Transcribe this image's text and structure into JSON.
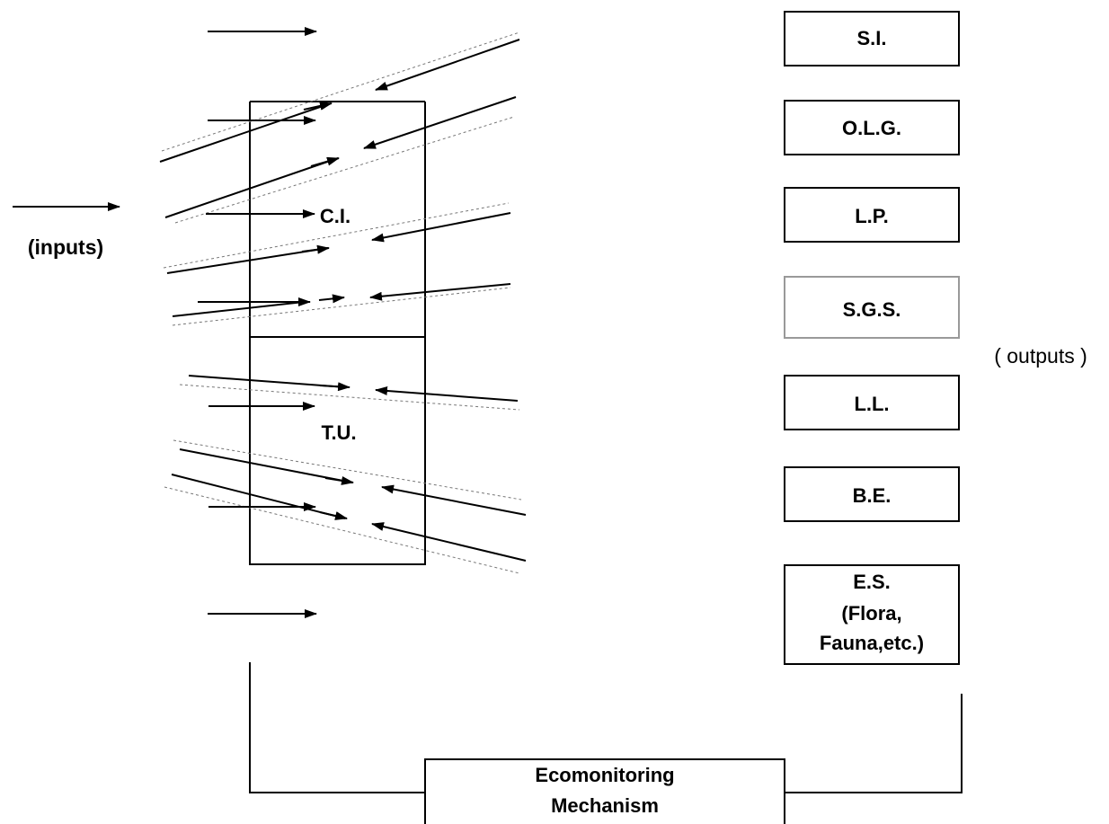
{
  "inputs_label": "(inputs)",
  "outputs_label": "( outputs )",
  "center_labels": {
    "ci": "C.I.",
    "tu": "T.U."
  },
  "outputs": [
    {
      "id": "si",
      "label": "S.I."
    },
    {
      "id": "olg",
      "label": "O.L.G."
    },
    {
      "id": "lp",
      "label": "L.P."
    },
    {
      "id": "sgs",
      "label": "S.G.S."
    },
    {
      "id": "ll",
      "label": "L.L."
    },
    {
      "id": "be",
      "label": "B.E."
    },
    {
      "id": "es",
      "lines": [
        "E.S.",
        "(Flora,",
        "Fauna,etc.)"
      ]
    }
  ],
  "mechanism": {
    "lines": [
      "Ecomonitoring",
      "Mechanism"
    ]
  }
}
